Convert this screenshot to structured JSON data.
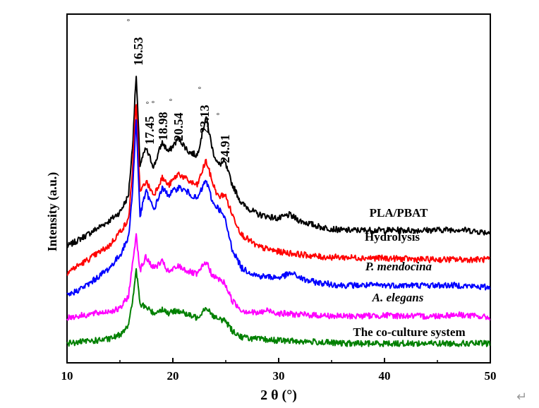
{
  "chart_data": {
    "type": "line",
    "title": "",
    "xlabel": "2 θ (°)",
    "ylabel": "Intensity (a.u.)",
    "xlim": [
      10,
      50
    ],
    "xticks": [
      10,
      20,
      30,
      40,
      50
    ],
    "yticks": [],
    "grid": false,
    "legend": "labels beside curves (right)",
    "series": [
      {
        "name": "PLA/PBAT",
        "color": "#000000",
        "x": [
          10,
          12,
          14,
          15,
          15.8,
          16.2,
          16.53,
          16.9,
          17.45,
          18.2,
          18.98,
          19.6,
          20.54,
          21.5,
          22.3,
          23.13,
          23.8,
          24.3,
          24.91,
          25.6,
          26.5,
          28,
          30,
          31,
          32,
          34,
          36,
          40,
          44,
          47,
          50
        ],
        "values": [
          0.6,
          0.89,
          1.2,
          1.4,
          1.78,
          2.95,
          4.6,
          2.5,
          2.88,
          2.45,
          3.02,
          2.8,
          3.12,
          2.8,
          2.72,
          3.62,
          2.8,
          2.5,
          2.56,
          2.05,
          1.6,
          1.35,
          1.25,
          1.34,
          1.2,
          1.05,
          0.98,
          0.98,
          0.98,
          1.0,
          0.92
        ]
      },
      {
        "name": "Hydrolysis",
        "color": "#ff0000",
        "x": [
          10,
          12,
          14,
          15,
          15.8,
          16.2,
          16.53,
          16.9,
          17.45,
          18.2,
          18.98,
          19.6,
          20.54,
          21.5,
          22.3,
          23.13,
          23.8,
          24.3,
          24.91,
          25.6,
          26.5,
          28,
          30,
          32,
          34,
          36,
          40,
          44,
          47,
          50
        ],
        "values": [
          0.0,
          0.3,
          0.62,
          0.95,
          1.2,
          2.4,
          4.0,
          1.85,
          2.12,
          1.8,
          2.2,
          2.02,
          2.3,
          2.12,
          2.02,
          2.6,
          2.05,
          1.75,
          1.82,
          1.35,
          0.88,
          0.6,
          0.48,
          0.42,
          0.36,
          0.35,
          0.33,
          0.3,
          0.3,
          0.3
        ]
      },
      {
        "name": "P. mendocina",
        "color": "#0000ff",
        "x": [
          10,
          12,
          14,
          15,
          15.8,
          16.2,
          16.53,
          16.9,
          17.45,
          18.2,
          18.98,
          19.6,
          20.54,
          21.5,
          22.3,
          23.13,
          23.8,
          24.3,
          24.91,
          25.6,
          26.5,
          28,
          30,
          31.2,
          32.5,
          34,
          36,
          40,
          44,
          47,
          50
        ],
        "values": [
          -0.55,
          -0.28,
          0.1,
          0.4,
          0.8,
          1.9,
          3.6,
          1.3,
          1.9,
          1.45,
          1.95,
          1.8,
          1.98,
          1.85,
          1.7,
          2.15,
          1.6,
          1.5,
          1.25,
          0.55,
          0.1,
          -0.08,
          -0.12,
          -0.02,
          -0.18,
          -0.25,
          -0.3,
          -0.3,
          -0.3,
          -0.3,
          -0.35
        ]
      },
      {
        "name": "A. elegans",
        "color": "#ff00ff",
        "x": [
          10,
          12,
          14,
          15,
          15.8,
          16.2,
          16.53,
          16.9,
          17.45,
          18.2,
          18.98,
          19.6,
          20.54,
          21.5,
          22.3,
          23.13,
          23.8,
          24.3,
          24.91,
          25.6,
          26.5,
          28,
          29,
          30,
          32,
          34,
          36,
          40,
          44,
          47,
          50
        ],
        "values": [
          -1.05,
          -0.98,
          -0.9,
          -0.85,
          -0.55,
          0.2,
          0.9,
          0.05,
          0.35,
          0.1,
          0.25,
          0.0,
          0.15,
          0.02,
          -0.05,
          0.25,
          -0.1,
          -0.15,
          -0.25,
          -0.65,
          -0.88,
          -0.95,
          -0.88,
          -0.95,
          -0.98,
          -1.0,
          -1.02,
          -1.0,
          -1.02,
          -0.98,
          -1.05
        ]
      },
      {
        "name": "The co-culture system",
        "color": "#008000",
        "x": [
          10,
          12,
          14,
          15,
          15.8,
          16.2,
          16.53,
          16.9,
          17.45,
          18.2,
          18.98,
          19.6,
          20.54,
          21.5,
          22.3,
          23.13,
          23.8,
          24.3,
          24.91,
          25.6,
          26.5,
          28,
          30,
          32,
          34,
          36,
          40,
          44,
          47,
          50
        ],
        "values": [
          -1.65,
          -1.6,
          -1.55,
          -1.45,
          -1.2,
          -0.7,
          0.1,
          -0.75,
          -0.8,
          -0.95,
          -0.85,
          -0.95,
          -0.88,
          -1.0,
          -1.05,
          -0.8,
          -1.0,
          -1.1,
          -1.1,
          -1.35,
          -1.5,
          -1.55,
          -1.58,
          -1.6,
          -1.62,
          -1.65,
          -1.65,
          -1.65,
          -1.65,
          -1.65
        ]
      }
    ],
    "annotations": [
      {
        "label": "16.53",
        "x": 16.53,
        "y": 4.6
      },
      {
        "label": "17.45",
        "x": 17.45,
        "y": 2.88
      },
      {
        "label": "18.98",
        "x": 18.98,
        "y": 3.02
      },
      {
        "label": "20.54",
        "x": 20.54,
        "y": 3.12
      },
      {
        "label": "23.13",
        "x": 23.13,
        "y": 3.62
      },
      {
        "label": "24.91",
        "x": 24.91,
        "y": 2.56
      }
    ],
    "degree_symbol": "°"
  },
  "page": {
    "return_mark": "↵"
  }
}
